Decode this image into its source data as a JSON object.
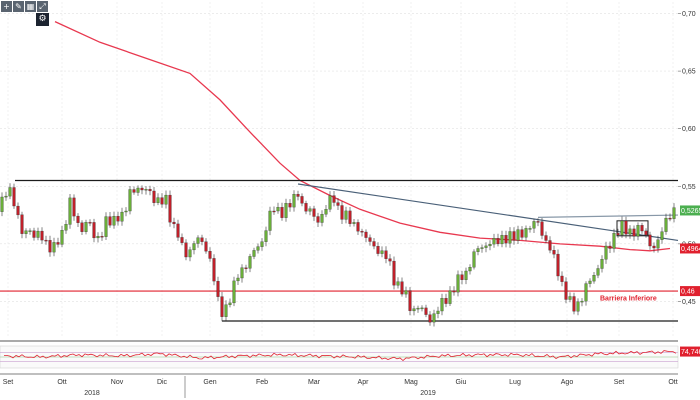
{
  "toolbar": {
    "icons": [
      "plus-icon",
      "pencil-icon",
      "grid-icon",
      "expand-icon"
    ],
    "glyphs": [
      "+",
      "✎",
      "▦",
      "⤢"
    ],
    "extra_glyph": "⚙"
  },
  "chart_data": {
    "type": "line",
    "subtype": "candlestick",
    "y_axis": {
      "ticks": [
        0.7,
        0.65,
        0.6,
        0.55,
        0.5,
        0.45
      ],
      "tick_labels": [
        "0,70",
        "0,65",
        "0,60",
        "0,55",
        "0,50",
        "0,45"
      ],
      "ylim": [
        0.42,
        0.71
      ],
      "position": "right"
    },
    "x_axis": {
      "months": [
        "Set",
        "Ott",
        "Nov",
        "Dic",
        "Gen",
        "Feb",
        "Mar",
        "Apr",
        "Mag",
        "Giu",
        "Lug",
        "Ago",
        "Set",
        "Ott"
      ],
      "years": [
        "2018",
        "2019"
      ]
    },
    "price_series": {
      "name": "Price",
      "keypoints": [
        [
          0,
          0.528
        ],
        [
          4,
          0.548
        ],
        [
          10,
          0.545
        ],
        [
          16,
          0.528
        ],
        [
          22,
          0.512
        ],
        [
          28,
          0.512
        ],
        [
          34,
          0.505
        ],
        [
          40,
          0.512
        ],
        [
          46,
          0.5
        ],
        [
          52,
          0.492
        ],
        [
          58,
          0.505
        ],
        [
          64,
          0.512
        ],
        [
          70,
          0.535
        ],
        [
          76,
          0.522
        ],
        [
          82,
          0.512
        ],
        [
          88,
          0.52
        ],
        [
          94,
          0.508
        ],
        [
          100,
          0.505
        ],
        [
          106,
          0.518
        ],
        [
          112,
          0.52
        ],
        [
          118,
          0.525
        ],
        [
          124,
          0.522
        ],
        [
          130,
          0.545
        ],
        [
          136,
          0.55
        ],
        [
          142,
          0.545
        ],
        [
          148,
          0.548
        ],
        [
          154,
          0.54
        ],
        [
          160,
          0.535
        ],
        [
          166,
          0.538
        ],
        [
          172,
          0.518
        ],
        [
          178,
          0.508
        ],
        [
          184,
          0.49
        ],
        [
          190,
          0.495
        ],
        [
          196,
          0.505
        ],
        [
          202,
          0.5
        ],
        [
          208,
          0.495
        ],
        [
          214,
          0.47
        ],
        [
          220,
          0.438
        ],
        [
          226,
          0.445
        ],
        [
          232,
          0.458
        ],
        [
          238,
          0.472
        ],
        [
          244,
          0.48
        ],
        [
          250,
          0.488
        ],
        [
          256,
          0.495
        ],
        [
          262,
          0.502
        ],
        [
          268,
          0.522
        ],
        [
          274,
          0.53
        ],
        [
          280,
          0.527
        ],
        [
          286,
          0.532
        ],
        [
          292,
          0.535
        ],
        [
          298,
          0.545
        ],
        [
          304,
          0.53
        ],
        [
          310,
          0.528
        ],
        [
          316,
          0.52
        ],
        [
          322,
          0.525
        ],
        [
          328,
          0.535
        ],
        [
          334,
          0.54
        ],
        [
          340,
          0.527
        ],
        [
          346,
          0.523
        ],
        [
          352,
          0.518
        ],
        [
          358,
          0.515
        ],
        [
          364,
          0.505
        ],
        [
          370,
          0.502
        ],
        [
          376,
          0.497
        ],
        [
          382,
          0.49
        ],
        [
          388,
          0.488
        ],
        [
          394,
          0.47
        ],
        [
          400,
          0.46
        ],
        [
          406,
          0.455
        ],
        [
          412,
          0.442
        ],
        [
          418,
          0.445
        ],
        [
          424,
          0.44
        ],
        [
          430,
          0.435
        ],
        [
          436,
          0.44
        ],
        [
          442,
          0.448
        ],
        [
          448,
          0.455
        ],
        [
          454,
          0.462
        ],
        [
          460,
          0.47
        ],
        [
          466,
          0.475
        ],
        [
          472,
          0.488
        ],
        [
          478,
          0.495
        ],
        [
          484,
          0.498
        ],
        [
          490,
          0.502
        ],
        [
          496,
          0.5
        ],
        [
          502,
          0.505
        ],
        [
          508,
          0.507
        ],
        [
          514,
          0.505
        ],
        [
          520,
          0.51
        ],
        [
          526,
          0.512
        ],
        [
          532,
          0.515
        ],
        [
          538,
          0.52
        ],
        [
          544,
          0.505
        ],
        [
          550,
          0.495
        ],
        [
          556,
          0.483
        ],
        [
          562,
          0.465
        ],
        [
          568,
          0.45
        ],
        [
          574,
          0.445
        ],
        [
          580,
          0.45
        ],
        [
          586,
          0.462
        ],
        [
          592,
          0.47
        ],
        [
          598,
          0.48
        ],
        [
          604,
          0.492
        ],
        [
          610,
          0.498
        ],
        [
          616,
          0.512
        ],
        [
          622,
          0.515
        ],
        [
          628,
          0.508
        ],
        [
          634,
          0.512
        ],
        [
          640,
          0.515
        ],
        [
          646,
          0.505
        ],
        [
          652,
          0.497
        ],
        [
          658,
          0.502
        ],
        [
          664,
          0.515
        ],
        [
          670,
          0.527
        ],
        [
          676,
          0.53
        ]
      ]
    },
    "moving_average": {
      "keypoints": [
        [
          55,
          0.693
        ],
        [
          100,
          0.675
        ],
        [
          150,
          0.66
        ],
        [
          190,
          0.648
        ],
        [
          220,
          0.625
        ],
        [
          250,
          0.597
        ],
        [
          280,
          0.57
        ],
        [
          300,
          0.555
        ],
        [
          330,
          0.542
        ],
        [
          360,
          0.53
        ],
        [
          400,
          0.518
        ],
        [
          440,
          0.51
        ],
        [
          480,
          0.505
        ],
        [
          520,
          0.503
        ],
        [
          560,
          0.5
        ],
        [
          600,
          0.498
        ],
        [
          630,
          0.495
        ],
        [
          650,
          0.494
        ],
        [
          670,
          0.496
        ]
      ]
    },
    "reference_lines": [
      {
        "kind": "hline",
        "y": 0.555,
        "x": [
          15,
          678
        ],
        "color": "#1c1c1c"
      },
      {
        "kind": "hline",
        "y": 0.459,
        "x": [
          0,
          678
        ],
        "color": "#e0202e"
      },
      {
        "kind": "hline",
        "y": 0.433,
        "x": [
          222,
          678
        ],
        "color": "#1c1c1c"
      },
      {
        "kind": "trend",
        "points": [
          [
            298,
            0.552
          ],
          [
            678,
            0.503
          ]
        ],
        "color": "#4a6078"
      },
      {
        "kind": "trend",
        "points": [
          [
            538,
            0.523
          ],
          [
            678,
            0.525
          ]
        ],
        "color": "#8898a8"
      },
      {
        "kind": "box",
        "x": [
          617,
          648
        ],
        "y": [
          0.52,
          0.507
        ],
        "color": "#1c1c1c"
      }
    ],
    "annotations": [
      {
        "text": "Barriera Inferiore",
        "x": 600,
        "y": 0.451,
        "color": "#e0202e"
      }
    ],
    "last_values": [
      {
        "text": "0,5265",
        "y": 0.529,
        "bg": "#4caf50",
        "fg": "#ffffff"
      },
      {
        "text": "0,4964",
        "y": 0.496,
        "bg": "#e0202e",
        "fg": "#ffffff"
      },
      {
        "text": "0,46",
        "y": 0.459,
        "bg": "#e0202e",
        "fg": "#ffffff"
      }
    ],
    "indicator": {
      "value": 0.7474,
      "label": "74,746",
      "levels": [
        70,
        50,
        30
      ],
      "keypoints": [
        [
          5,
          0.55
        ],
        [
          40,
          0.5
        ],
        [
          80,
          0.6
        ],
        [
          120,
          0.55
        ],
        [
          160,
          0.65
        ],
        [
          200,
          0.45
        ],
        [
          240,
          0.55
        ],
        [
          280,
          0.6
        ],
        [
          320,
          0.55
        ],
        [
          360,
          0.5
        ],
        [
          400,
          0.42
        ],
        [
          440,
          0.55
        ],
        [
          480,
          0.6
        ],
        [
          520,
          0.6
        ],
        [
          560,
          0.5
        ],
        [
          600,
          0.65
        ],
        [
          640,
          0.7
        ],
        [
          676,
          0.75
        ]
      ]
    }
  }
}
